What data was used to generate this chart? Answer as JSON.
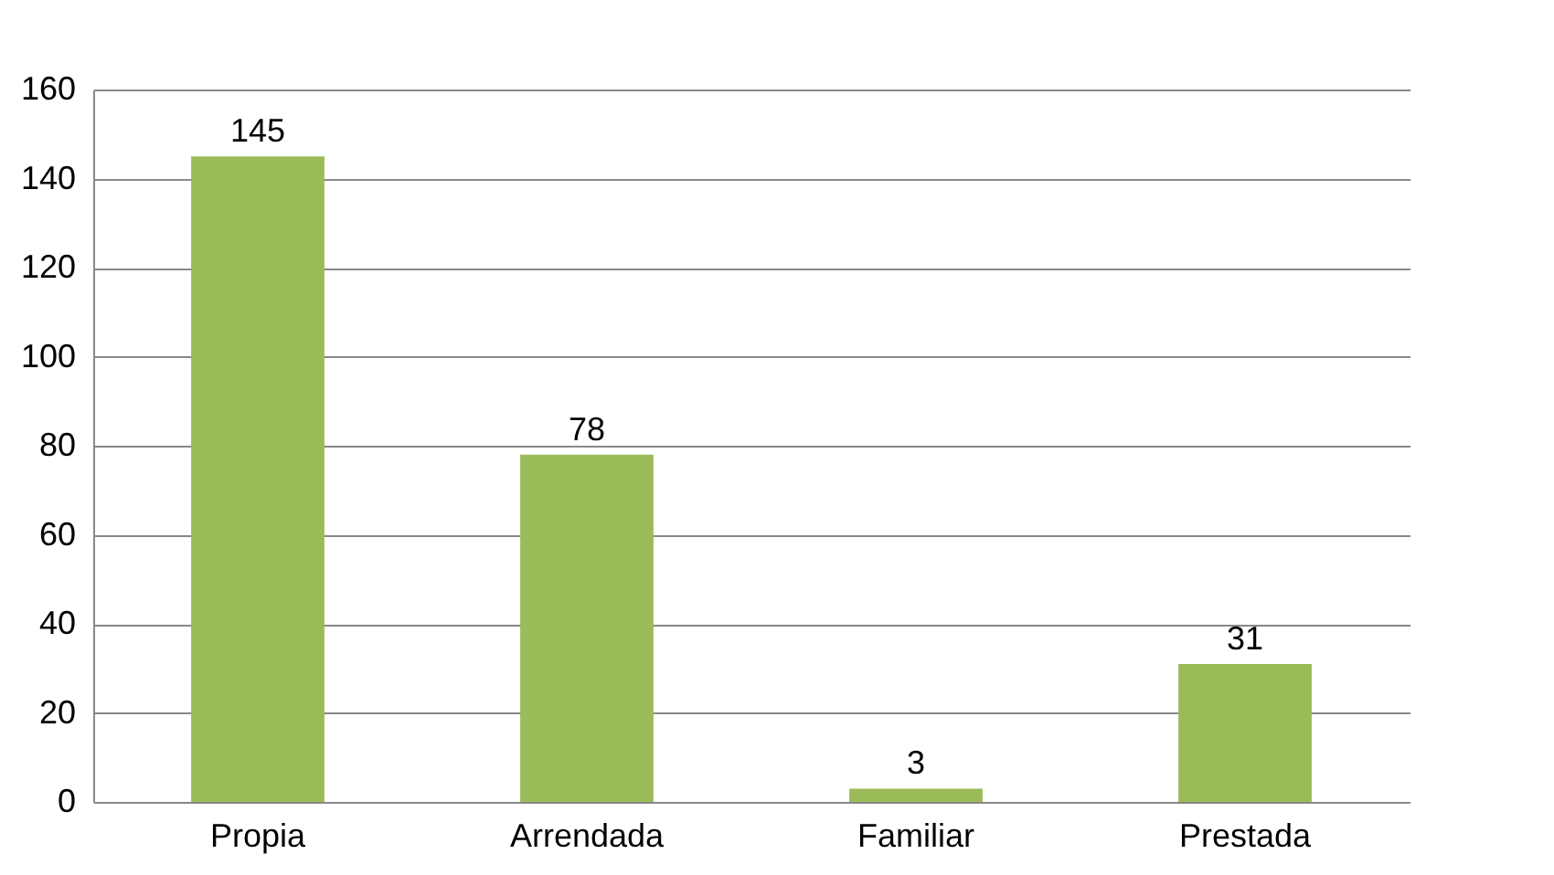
{
  "chart_data": {
    "type": "bar",
    "categories": [
      "Propia",
      "Arrendada",
      "Familiar",
      "Prestada"
    ],
    "values": [
      145,
      78,
      3,
      31
    ],
    "color": "#9bbb59",
    "ylim": [
      0,
      160
    ],
    "yticks": [
      0,
      20,
      40,
      60,
      80,
      100,
      120,
      140,
      160
    ],
    "grid": "y",
    "data_labels": true
  }
}
